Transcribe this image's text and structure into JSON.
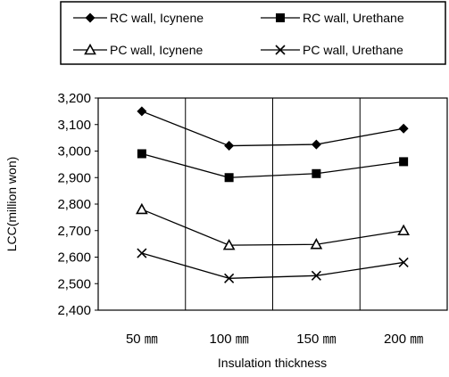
{
  "chart_data": {
    "type": "line",
    "title": "",
    "xlabel": "Insulation thickness",
    "ylabel": "LCC(million won)",
    "categories": [
      "50 ㎜",
      "100 ㎜",
      "150 ㎜",
      "200 ㎜"
    ],
    "ylim": [
      2400,
      3200
    ],
    "yticks": [
      "2,400",
      "2,500",
      "2,600",
      "2,700",
      "2,800",
      "2,900",
      "3,000",
      "3,100",
      "3,200"
    ],
    "ytick_values": [
      2400,
      2500,
      2600,
      2700,
      2800,
      2900,
      3000,
      3100,
      3200
    ],
    "grid": "vertical lines between categories",
    "legend_position": "top",
    "series": [
      {
        "name": "RC wall, Icynene",
        "marker": "diamond-filled",
        "values": [
          3150,
          3020,
          3025,
          3085
        ]
      },
      {
        "name": "RC wall, Urethane",
        "marker": "square-filled",
        "values": [
          2990,
          2900,
          2915,
          2960
        ]
      },
      {
        "name": "PC wall, Icynene",
        "marker": "triangle-open",
        "values": [
          2780,
          2645,
          2648,
          2700
        ]
      },
      {
        "name": "PC wall, Urethane",
        "marker": "x",
        "values": [
          2615,
          2520,
          2530,
          2580
        ]
      }
    ]
  }
}
